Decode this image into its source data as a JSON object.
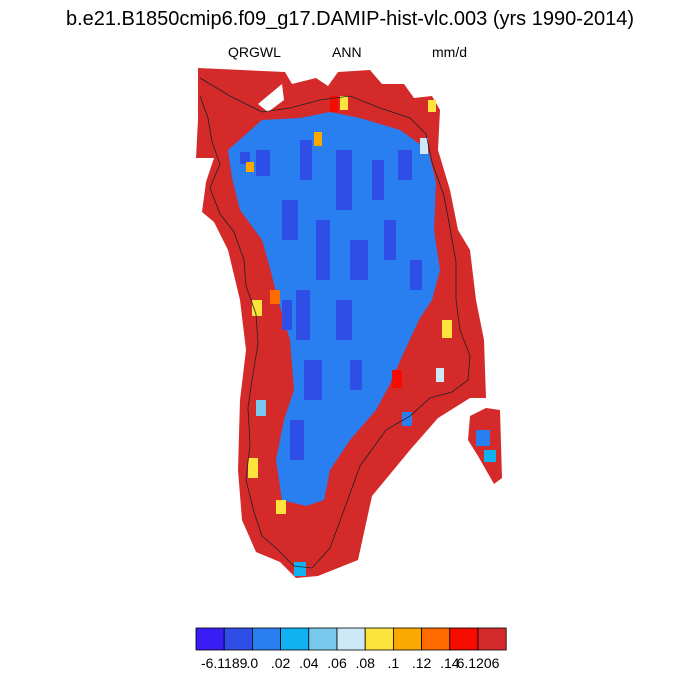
{
  "title": "b.e21.B1850cmip6.f09_g17.DAMIP-hist-vlc.003 (yrs 1990-2014)",
  "variable": "QRGWL",
  "period": "ANN",
  "units": "mm/d",
  "colorbar": {
    "colors": [
      "#3a1cf5",
      "#2f4ee6",
      "#2a7ff0",
      "#0fb3f2",
      "#78c8ec",
      "#cde9f8",
      "#fde33b",
      "#fba800",
      "#fc6a00",
      "#f50b00",
      "#d42a2a"
    ],
    "labels": [
      "-6.1189",
      ".0",
      ".02",
      ".04",
      ".06",
      ".08",
      ".1",
      ".12",
      ".14",
      "6.1206"
    ]
  }
}
